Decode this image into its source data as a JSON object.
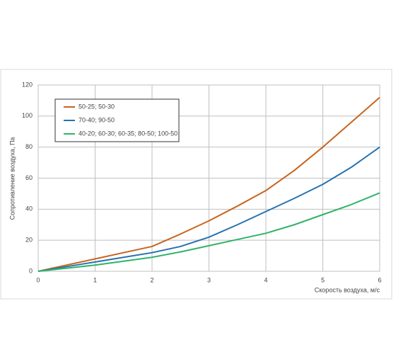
{
  "chart_data": {
    "type": "line",
    "ylabel": "Сопротивление воздуха, Па",
    "xlabel": "Скорость воздуха, м/с",
    "x": [
      0,
      0.5,
      1,
      1.5,
      2,
      2.5,
      3,
      3.5,
      4,
      4.5,
      5,
      5.5,
      6
    ],
    "series": [
      {
        "name": "50-25; 50-30",
        "color": "#c8641e",
        "values": [
          0,
          4,
          8,
          12,
          16,
          24,
          32.5,
          42,
          52,
          65,
          80,
          96,
          112
        ]
      },
      {
        "name": "70-40; 90-50",
        "color": "#2672b0",
        "values": [
          0,
          3,
          6,
          9,
          12,
          16,
          22,
          30,
          38.5,
          47,
          56,
          67,
          80
        ]
      },
      {
        "name": "40-20; 60-30; 60-35; 80-50; 100-50",
        "color": "#2fb36a",
        "values": [
          0,
          2,
          4,
          6.5,
          9,
          12.5,
          16.5,
          20.5,
          24.5,
          30,
          36.5,
          43,
          50.5
        ]
      }
    ],
    "xlim": [
      0,
      6
    ],
    "xticks": [
      0,
      1,
      2,
      3,
      4,
      5,
      6
    ],
    "ylim": [
      0,
      120
    ],
    "yticks": [
      0,
      20,
      40,
      60,
      80,
      100,
      120
    ],
    "grid": true,
    "legend": "upper left"
  }
}
